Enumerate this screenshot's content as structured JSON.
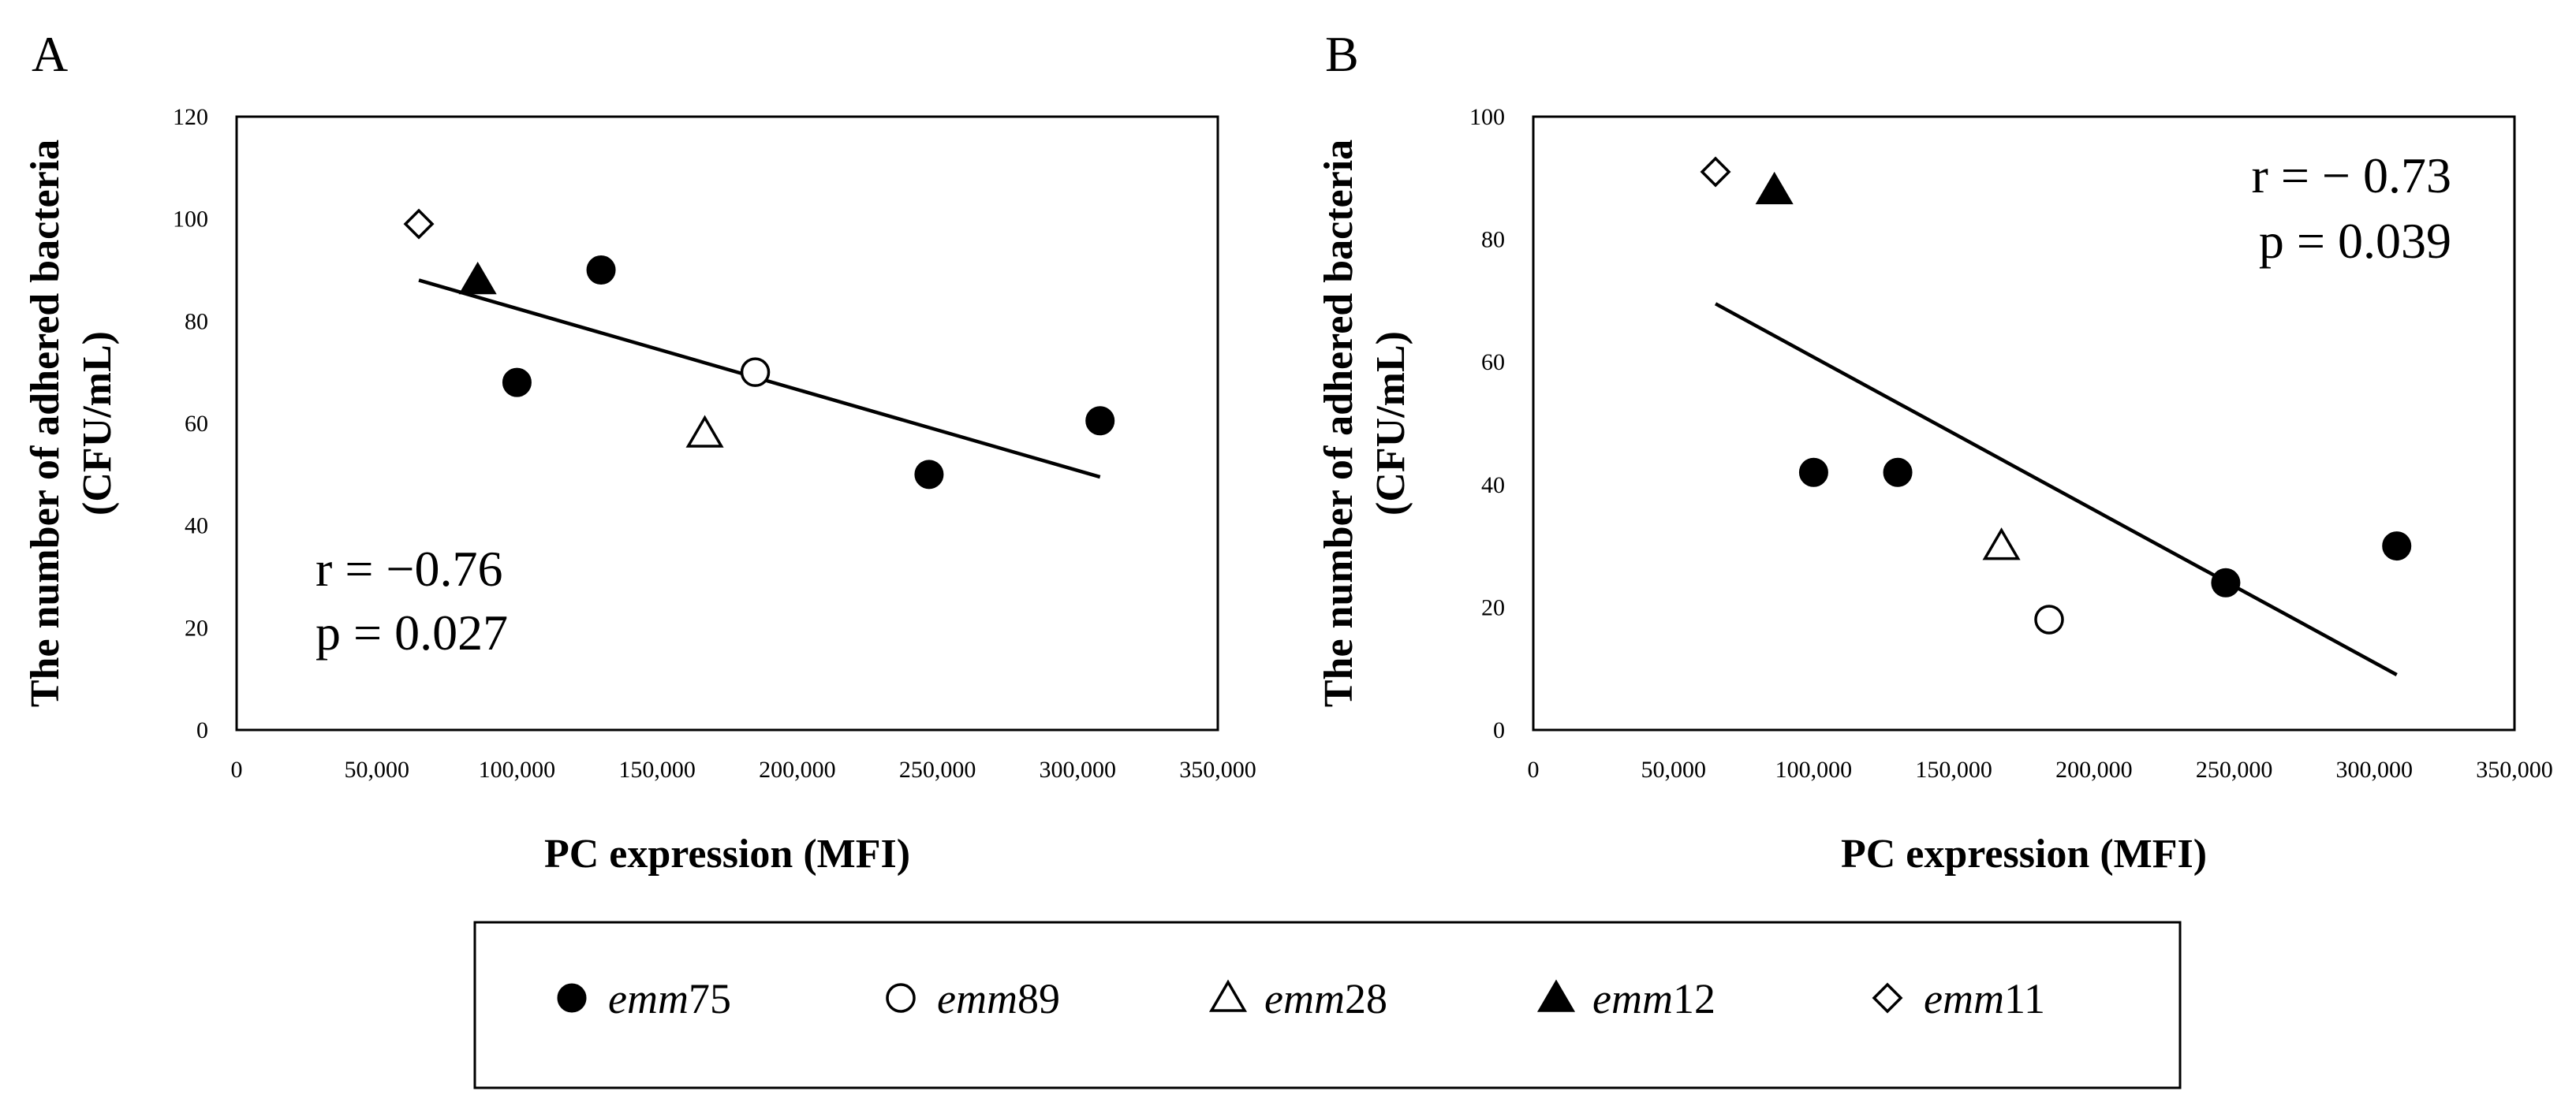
{
  "chart_data": [
    {
      "panel_label": "A",
      "type": "scatter",
      "xlabel": "PC expression (MFI)",
      "ylabel_line1": "The number of adhered bacteria",
      "ylabel_line2": "(CFU/mL)",
      "xlim": [
        0,
        350000
      ],
      "ylim": [
        0,
        120
      ],
      "xticks": [
        "0",
        "50,000",
        "100,000",
        "150,000",
        "200,000",
        "250,000",
        "300,000",
        "350,000"
      ],
      "xtick_values": [
        0,
        50000,
        100000,
        150000,
        200000,
        250000,
        300000,
        350000
      ],
      "yticks": [
        "0",
        "20",
        "40",
        "60",
        "80",
        "100",
        "120"
      ],
      "ytick_values": [
        0,
        20,
        40,
        60,
        80,
        100,
        120
      ],
      "points": [
        {
          "x": 100000,
          "y": 68,
          "group": "emm75"
        },
        {
          "x": 130000,
          "y": 90,
          "group": "emm75"
        },
        {
          "x": 247000,
          "y": 50,
          "group": "emm75"
        },
        {
          "x": 308000,
          "y": 60.5,
          "group": "emm75"
        },
        {
          "x": 185000,
          "y": 70,
          "group": "emm89"
        },
        {
          "x": 167000,
          "y": 58,
          "group": "emm28"
        },
        {
          "x": 86000,
          "y": 88,
          "group": "emm12"
        },
        {
          "x": 65000,
          "y": 99,
          "group": "emm11"
        }
      ],
      "trendline": {
        "x": [
          65000,
          308000
        ],
        "y": [
          88,
          49.5
        ]
      },
      "stat_r": "r = −0.76",
      "stat_p": "p =  0.027",
      "stat_position": "bottom-left"
    },
    {
      "panel_label": "B",
      "type": "scatter",
      "xlabel": "PC expression (MFI)",
      "ylabel_line1": "The number of adhered bacteria",
      "ylabel_line2": "(CFU/mL)",
      "xlim": [
        0,
        350000
      ],
      "ylim": [
        0,
        100
      ],
      "xticks": [
        "0",
        "50,000",
        "100,000",
        "150,000",
        "200,000",
        "250,000",
        "300,000",
        "350,000"
      ],
      "xtick_values": [
        0,
        50000,
        100000,
        150000,
        200000,
        250000,
        300000,
        350000
      ],
      "yticks": [
        "0",
        "20",
        "40",
        "60",
        "80",
        "100"
      ],
      "ytick_values": [
        0,
        20,
        40,
        60,
        80,
        100
      ],
      "points": [
        {
          "x": 100000,
          "y": 42,
          "group": "emm75"
        },
        {
          "x": 130000,
          "y": 42,
          "group": "emm75"
        },
        {
          "x": 247000,
          "y": 24,
          "group": "emm75"
        },
        {
          "x": 308000,
          "y": 30,
          "group": "emm75"
        },
        {
          "x": 184000,
          "y": 18,
          "group": "emm89"
        },
        {
          "x": 167000,
          "y": 30,
          "group": "emm28"
        },
        {
          "x": 86000,
          "y": 88,
          "group": "emm12"
        },
        {
          "x": 65000,
          "y": 91,
          "group": "emm11"
        }
      ],
      "trendline": {
        "x": [
          65000,
          308000
        ],
        "y": [
          69.5,
          9
        ]
      },
      "stat_r": "r = − 0.73",
      "stat_p": "p = 0.039",
      "stat_position": "top-right"
    }
  ],
  "legend": {
    "items": [
      {
        "key": "emm75",
        "marker": "filled-circle",
        "prefix": "emm",
        "suffix": "75"
      },
      {
        "key": "emm89",
        "marker": "open-circle",
        "prefix": "emm",
        "suffix": "89"
      },
      {
        "key": "emm28",
        "marker": "open-triangle",
        "prefix": "emm",
        "suffix": "28"
      },
      {
        "key": "emm12",
        "marker": "filled-triangle",
        "prefix": "emm",
        "suffix": "12"
      },
      {
        "key": "emm11",
        "marker": "open-diamond",
        "prefix": "emm",
        "suffix": "11"
      }
    ]
  },
  "colors": {
    "ink": "#000000",
    "background": "#ffffff"
  }
}
